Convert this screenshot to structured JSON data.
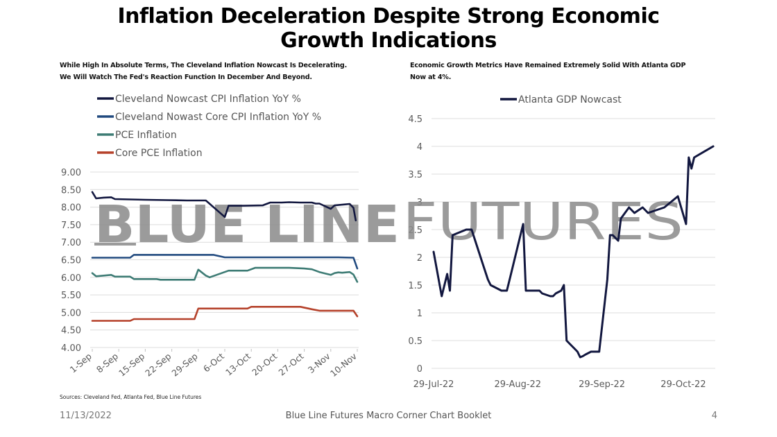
{
  "page": {
    "title": "Inflation Deceleration Despite Strong Economic Growth Indications",
    "title_line1": "Inflation Deceleration Despite Strong Economic",
    "title_line2": "Growth Indications",
    "watermark_left": "BLUE LINE",
    "watermark_right": "FUTURES",
    "footer": {
      "date": "11/13/2022",
      "booklet": "Blue Line Futures Macro Corner Chart Booklet",
      "page_number": "4"
    },
    "sources": "Sources: Cleveland Fed, Atlanta Fed, Blue Line Futures"
  },
  "chart_data": [
    {
      "type": "line",
      "subtitle_line1": "While High In Absolute Terms, The Cleveland Inflation Nowcast Is Decelerating.",
      "subtitle_line2": "We Will Watch The Fed's Reaction Function In December And Beyond.",
      "title": "",
      "xlabel": "",
      "ylabel": "",
      "ylim": [
        4.0,
        9.0
      ],
      "yticks": [
        "4.00",
        "4.50",
        "5.00",
        "5.50",
        "6.00",
        "6.50",
        "7.00",
        "7.50",
        "8.00",
        "8.50",
        "9.00"
      ],
      "ytick_values": [
        4.0,
        4.5,
        5.0,
        5.5,
        6.0,
        6.5,
        7.0,
        7.5,
        8.0,
        8.5,
        9.0
      ],
      "xticks": [
        "1-Sep",
        "8-Sep",
        "15-Sep",
        "22-Sep",
        "29-Sep",
        "6-Oct",
        "13-Oct",
        "20-Oct",
        "27-Oct",
        "3-Nov",
        "10-Nov"
      ],
      "xtick_days": [
        0,
        7,
        14,
        21,
        28,
        35,
        42,
        49,
        56,
        63,
        70
      ],
      "xlim_days": [
        0,
        70
      ],
      "grid": true,
      "legend_position": "top-left",
      "x_note": "x values are days since 1-Sep-2022",
      "series": [
        {
          "name": "Cleveland Nowcast CPI Inflation YoY %",
          "color": "#12173f",
          "x": [
            0,
            1,
            3,
            5,
            6,
            10,
            14,
            20,
            25,
            27,
            29,
            30,
            35,
            36,
            40,
            45,
            47,
            49,
            50,
            52,
            55,
            58,
            59,
            60,
            63,
            64,
            66,
            67,
            68,
            69,
            69.6
          ],
          "y": [
            8.43,
            8.25,
            8.27,
            8.28,
            8.23,
            8.22,
            8.21,
            8.2,
            8.19,
            8.19,
            8.19,
            8.19,
            7.72,
            8.04,
            8.04,
            8.05,
            8.13,
            8.13,
            8.13,
            8.14,
            8.13,
            8.13,
            8.1,
            8.1,
            7.95,
            8.05,
            8.07,
            8.08,
            8.09,
            7.98,
            7.62
          ]
        },
        {
          "name": "Cleveland Nowast Core CPI Inflation YoY %",
          "color": "#214a7f",
          "x": [
            0,
            10,
            11,
            20,
            27,
            32,
            35,
            45,
            55,
            60,
            65,
            69,
            70
          ],
          "y": [
            6.56,
            6.56,
            6.64,
            6.64,
            6.64,
            6.64,
            6.57,
            6.57,
            6.57,
            6.57,
            6.57,
            6.56,
            6.25
          ]
        },
        {
          "name": "PCE Inflation",
          "color": "#3d7b74",
          "x": [
            0,
            1,
            3,
            5,
            6,
            10,
            11,
            17,
            18,
            27,
            28,
            30,
            31,
            36,
            37,
            41,
            43,
            49,
            52,
            56,
            58,
            60,
            63,
            64,
            65,
            66,
            68,
            69,
            70
          ],
          "y": [
            6.12,
            6.03,
            6.05,
            6.07,
            6.02,
            6.02,
            5.95,
            5.95,
            5.93,
            5.93,
            6.22,
            6.05,
            6.0,
            6.19,
            6.19,
            6.19,
            6.27,
            6.27,
            6.27,
            6.25,
            6.23,
            6.15,
            6.07,
            6.12,
            6.14,
            6.13,
            6.15,
            6.08,
            5.87
          ]
        },
        {
          "name": "Core PCE Inflation",
          "color": "#b5412a",
          "x": [
            0,
            10,
            11,
            27,
            28,
            41,
            42,
            55,
            58,
            60,
            65,
            69,
            70
          ],
          "y": [
            4.76,
            4.76,
            4.81,
            4.81,
            5.11,
            5.11,
            5.16,
            5.16,
            5.09,
            5.05,
            5.05,
            5.05,
            4.89
          ]
        }
      ]
    },
    {
      "type": "line",
      "subtitle_line1": "Economic Growth Metrics Have Remained Extremely Solid With Atlanta GDP",
      "subtitle_line2": "Now at 4%.",
      "title": "",
      "xlabel": "",
      "ylabel": "",
      "ylim": [
        0,
        4.5
      ],
      "yticks": [
        "0",
        "0.5",
        "1",
        "1.5",
        "2",
        "2.5",
        "3",
        "3.5",
        "4",
        "4.5"
      ],
      "ytick_values": [
        0,
        0.5,
        1,
        1.5,
        2,
        2.5,
        3,
        3.5,
        4,
        4.5
      ],
      "xticks": [
        "29-Jul-22",
        "29-Aug-22",
        "29-Sep-22",
        "29-Oct-22"
      ],
      "xtick_days": [
        0,
        31,
        62,
        92
      ],
      "xlim_days": [
        0,
        103
      ],
      "grid": true,
      "legend_position": "top-center",
      "x_note": "x values are days since 29-Jul-2022",
      "series": [
        {
          "name": "Atlanta GDP Nowcast",
          "color": "#12173f",
          "x": [
            0,
            3,
            5,
            6,
            7,
            12,
            14,
            18,
            20,
            21,
            25,
            27,
            28,
            30,
            33,
            34,
            39,
            40,
            43,
            44,
            45,
            47,
            48,
            49,
            50,
            52,
            53,
            54,
            55,
            56,
            58,
            61,
            64,
            65,
            66,
            68,
            69,
            72,
            73,
            74,
            77,
            79,
            85,
            90,
            93,
            94,
            95,
            96,
            103
          ],
          "y": [
            2.1,
            1.3,
            1.7,
            1.4,
            2.4,
            2.5,
            2.5,
            1.9,
            1.6,
            1.5,
            1.4,
            1.4,
            1.6,
            2.0,
            2.6,
            1.4,
            1.4,
            1.35,
            1.3,
            1.3,
            1.35,
            1.4,
            1.5,
            0.5,
            0.45,
            0.35,
            0.3,
            0.2,
            0.22,
            0.25,
            0.3,
            0.3,
            1.6,
            2.4,
            2.4,
            2.3,
            2.7,
            2.9,
            2.85,
            2.8,
            2.9,
            2.8,
            2.9,
            3.1,
            2.6,
            3.8,
            3.6,
            3.8,
            4.0
          ]
        }
      ]
    }
  ]
}
